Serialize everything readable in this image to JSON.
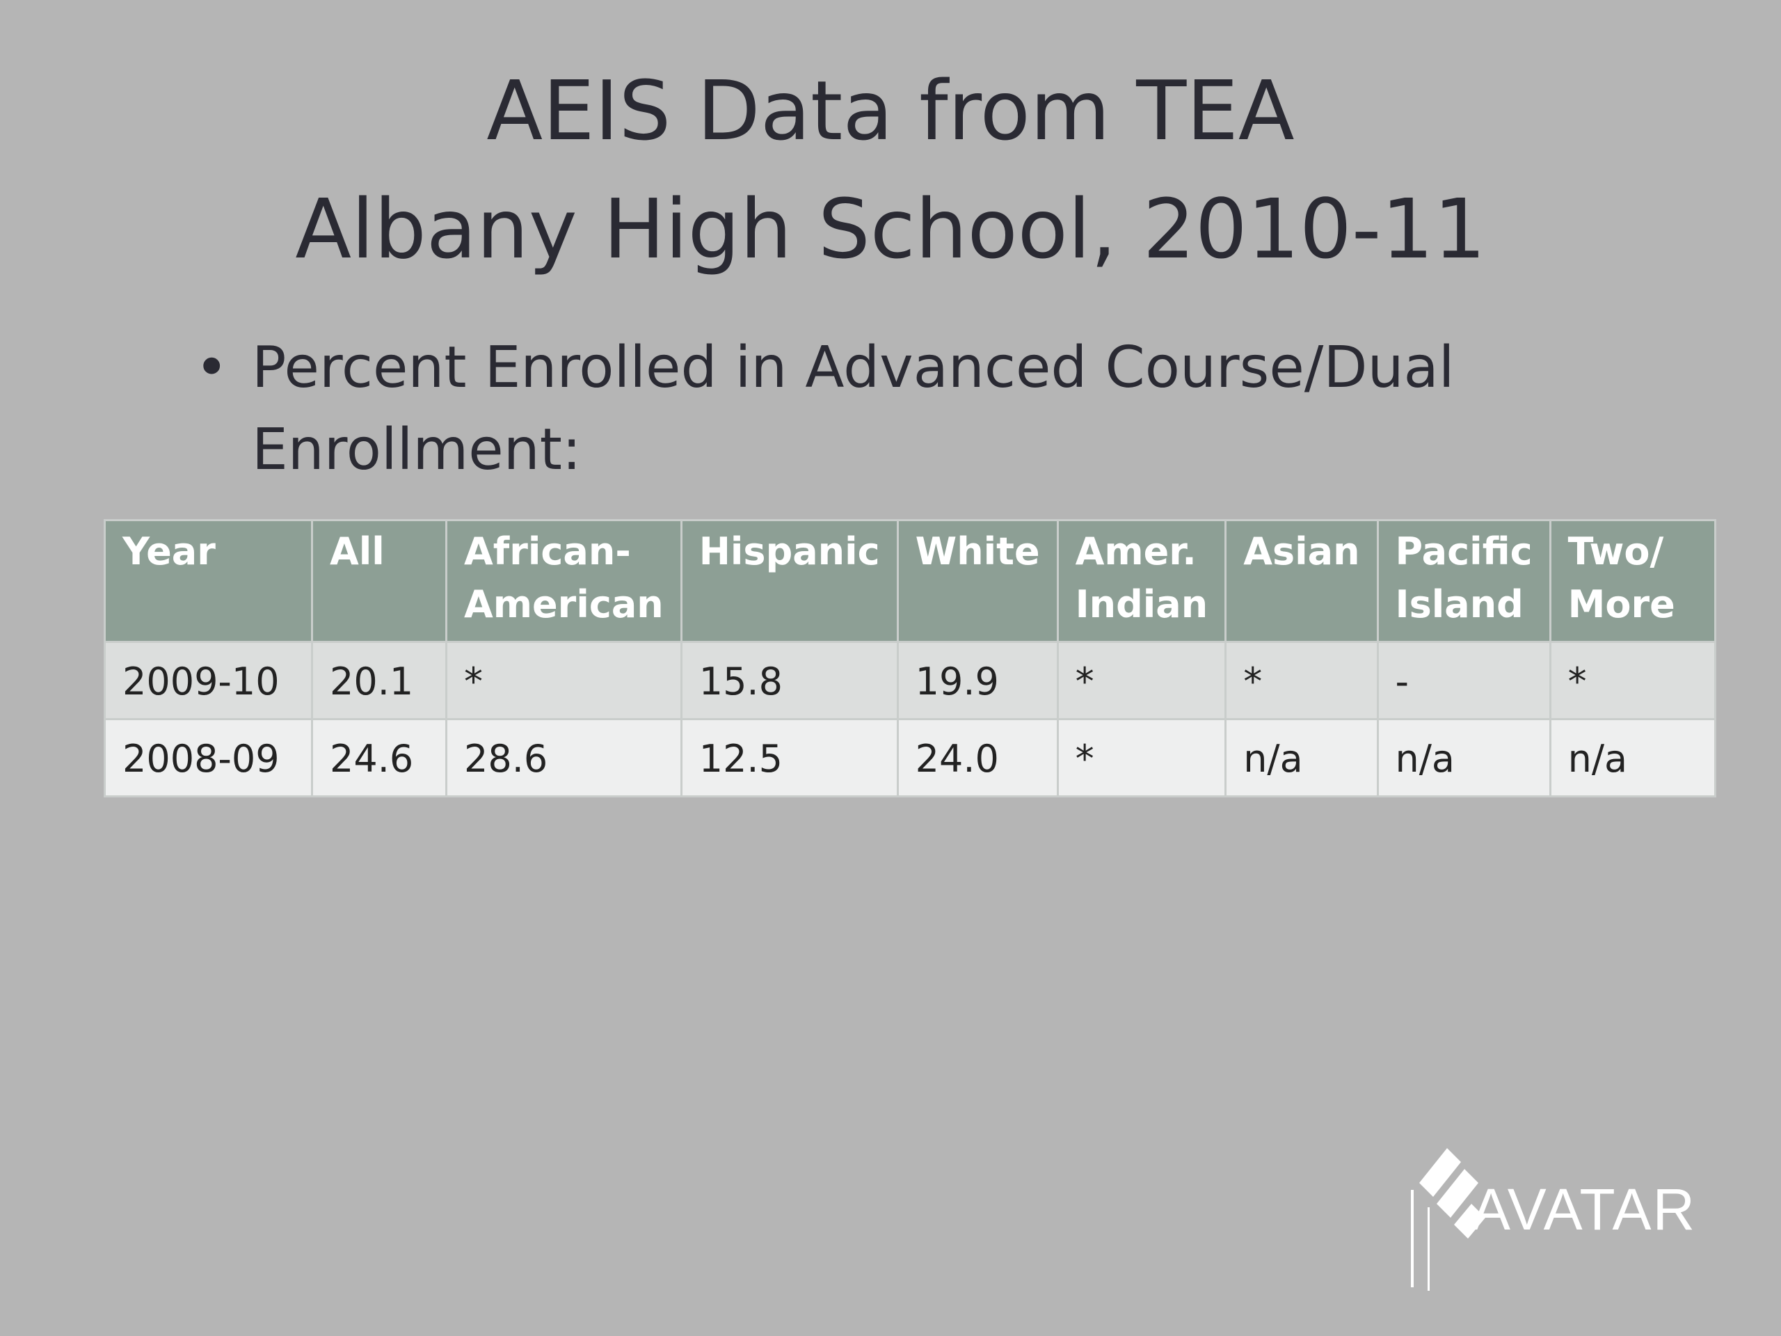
{
  "title": {
    "line1": "AEIS Data from TEA",
    "line2": "Albany High School, 2010-11"
  },
  "bullet": "Percent  Enrolled in Advanced Course/Dual Enrollment:",
  "table": {
    "headers": [
      "Year",
      "All",
      "African-\nAmerican",
      "Hispanic",
      "White",
      "Amer.\nIndian",
      "Asian",
      "Pacific\nIsland",
      "Two/\nMore"
    ],
    "rows": [
      [
        "2009-10",
        "20.1",
        "*",
        "15.8",
        "19.9",
        "*",
        "*",
        "-",
        "*"
      ],
      [
        "2008-09",
        "24.6",
        "28.6",
        "12.5",
        "24.0",
        "*",
        "n/a",
        "n/a",
        "n/a"
      ]
    ]
  },
  "logo": "AVATAR"
}
